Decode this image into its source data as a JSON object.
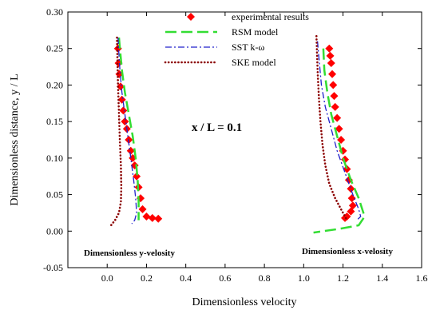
{
  "chart_data": {
    "type": "scatter",
    "title": "",
    "xlabel": "Dimensionless velocity",
    "ylabel": "Dimensionless distance, y / L",
    "xlim": [
      -0.2,
      1.6
    ],
    "ylim": [
      -0.05,
      0.3
    ],
    "x_ticks": [
      "0.0",
      "0.2",
      "0.4",
      "0.6",
      "0.8",
      "1.0",
      "1.2",
      "1.4",
      "1.6"
    ],
    "y_ticks": [
      "-0.05",
      "0.00",
      "0.05",
      "0.10",
      "0.15",
      "0.20",
      "0.25",
      "0.30"
    ],
    "x_tick_values": [
      0,
      0.2,
      0.4,
      0.6,
      0.8,
      1.0,
      1.2,
      1.4,
      1.6
    ],
    "y_tick_values": [
      -0.05,
      0,
      0.05,
      0.1,
      0.15,
      0.2,
      0.25,
      0.3
    ],
    "legend_position": "top",
    "annotations": {
      "center": "x / L = 0.1",
      "left": "Dimensionless y-velosity",
      "right": "Dimensionless x-velosity"
    },
    "series": [
      {
        "name": "experimental results",
        "style": "diamond",
        "color": "#ff0000",
        "groups": [
          {
            "x": [
              0.055,
              0.058,
              0.062,
              0.068,
              0.075,
              0.082,
              0.09,
              0.1,
              0.11,
              0.12,
              0.13,
              0.14,
              0.15,
              0.16,
              0.17,
              0.18,
              0.2,
              0.23,
              0.26
            ],
            "y": [
              0.25,
              0.23,
              0.215,
              0.198,
              0.18,
              0.165,
              0.15,
              0.14,
              0.125,
              0.11,
              0.1,
              0.09,
              0.075,
              0.06,
              0.045,
              0.03,
              0.02,
              0.018,
              0.017
            ]
          },
          {
            "x": [
              1.13,
              1.135,
              1.14,
              1.145,
              1.15,
              1.155,
              1.16,
              1.17,
              1.18,
              1.19,
              1.2,
              1.21,
              1.22,
              1.23,
              1.24,
              1.245,
              1.25,
              1.24,
              1.22,
              1.21
            ],
            "y": [
              0.25,
              0.24,
              0.23,
              0.215,
              0.2,
              0.185,
              0.17,
              0.155,
              0.14,
              0.125,
              0.11,
              0.098,
              0.085,
              0.07,
              0.058,
              0.045,
              0.035,
              0.027,
              0.02,
              0.018
            ]
          }
        ]
      },
      {
        "name": "RSM model",
        "style": "long-dash",
        "color": "#33dd33",
        "groups": [
          {
            "x": [
              0.06,
              0.065,
              0.075,
              0.09,
              0.11,
              0.13,
              0.145,
              0.155,
              0.16,
              0.16
            ],
            "y": [
              0.265,
              0.25,
              0.22,
              0.19,
              0.16,
              0.13,
              0.1,
              0.07,
              0.04,
              0.015
            ]
          },
          {
            "x": [
              1.1,
              1.105,
              1.12,
              1.14,
              1.17,
              1.2,
              1.24,
              1.28,
              1.31,
              1.28,
              1.18,
              1.05
            ],
            "y": [
              0.25,
              0.22,
              0.19,
              0.16,
              0.13,
              0.1,
              0.07,
              0.045,
              0.02,
              0.008,
              0.003,
              -0.002
            ]
          }
        ]
      },
      {
        "name": "SST k-ω",
        "style": "dash-dot",
        "color": "#2020cc",
        "groups": [
          {
            "x": [
              0.055,
              0.058,
              0.065,
              0.075,
              0.09,
              0.105,
              0.12,
              0.135,
              0.145,
              0.15,
              0.14,
              0.125
            ],
            "y": [
              0.265,
              0.25,
              0.22,
              0.19,
              0.16,
              0.13,
              0.1,
              0.07,
              0.045,
              0.025,
              0.015,
              0.01
            ]
          },
          {
            "x": [
              1.07,
              1.08,
              1.09,
              1.11,
              1.14,
              1.17,
              1.21,
              1.25,
              1.28,
              1.29,
              1.27
            ],
            "y": [
              0.26,
              0.23,
              0.2,
              0.17,
              0.14,
              0.11,
              0.08,
              0.05,
              0.03,
              0.02,
              0.015
            ]
          }
        ]
      },
      {
        "name": "SKE model",
        "style": "dotted",
        "color": "#8b0000",
        "groups": [
          {
            "x": [
              0.05,
              0.052,
              0.055,
              0.06,
              0.065,
              0.07,
              0.072,
              0.07,
              0.06,
              0.04,
              0.02
            ],
            "y": [
              0.265,
              0.24,
              0.2,
              0.16,
              0.12,
              0.09,
              0.06,
              0.04,
              0.025,
              0.015,
              0.008
            ]
          },
          {
            "x": [
              1.065,
              1.068,
              1.072,
              1.078,
              1.085,
              1.095,
              1.11,
              1.13,
              1.16,
              1.19,
              1.21,
              1.22
            ],
            "y": [
              0.267,
              0.24,
              0.21,
              0.18,
              0.15,
              0.12,
              0.09,
              0.065,
              0.045,
              0.03,
              0.02,
              0.015
            ]
          }
        ]
      }
    ]
  }
}
